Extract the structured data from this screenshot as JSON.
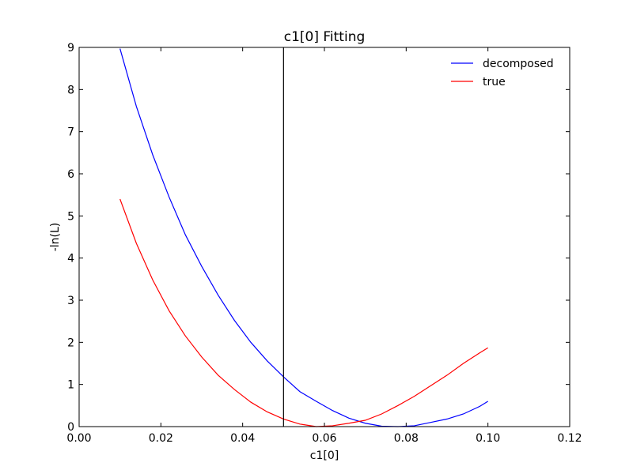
{
  "chart_data": {
    "type": "line",
    "title": "c1[0] Fitting",
    "xlabel": "c1[0]",
    "ylabel": "-ln(L)",
    "xlim": [
      0.0,
      0.12
    ],
    "ylim": [
      0,
      9
    ],
    "xticks": [
      "0.00",
      "0.02",
      "0.04",
      "0.06",
      "0.08",
      "0.10",
      "0.12"
    ],
    "yticks": [
      "0",
      "1",
      "2",
      "3",
      "4",
      "5",
      "6",
      "7",
      "8",
      "9"
    ],
    "grid": false,
    "legend_position": "top-right",
    "vline": {
      "x": 0.05,
      "color": "#000000"
    },
    "series": [
      {
        "name": "decomposed",
        "color": "#0000ff",
        "x": [
          0.01,
          0.014,
          0.018,
          0.022,
          0.026,
          0.03,
          0.034,
          0.038,
          0.042,
          0.046,
          0.05,
          0.054,
          0.058,
          0.062,
          0.066,
          0.07,
          0.074,
          0.078,
          0.082,
          0.086,
          0.09,
          0.094,
          0.098,
          0.1
        ],
        "y": [
          8.97,
          7.6,
          6.45,
          5.45,
          4.55,
          3.8,
          3.12,
          2.52,
          2.0,
          1.56,
          1.18,
          0.83,
          0.6,
          0.38,
          0.2,
          0.08,
          0.01,
          0.0,
          0.02,
          0.1,
          0.18,
          0.3,
          0.48,
          0.6
        ]
      },
      {
        "name": "true",
        "color": "#ff0000",
        "x": [
          0.01,
          0.014,
          0.018,
          0.022,
          0.026,
          0.03,
          0.034,
          0.038,
          0.042,
          0.046,
          0.05,
          0.054,
          0.058,
          0.062,
          0.066,
          0.07,
          0.074,
          0.078,
          0.082,
          0.086,
          0.09,
          0.094,
          0.098,
          0.1
        ],
        "y": [
          5.4,
          4.35,
          3.48,
          2.75,
          2.15,
          1.65,
          1.22,
          0.88,
          0.58,
          0.35,
          0.18,
          0.06,
          0.0,
          0.02,
          0.08,
          0.15,
          0.3,
          0.5,
          0.72,
          0.97,
          1.22,
          1.5,
          1.75,
          1.87
        ]
      }
    ]
  }
}
